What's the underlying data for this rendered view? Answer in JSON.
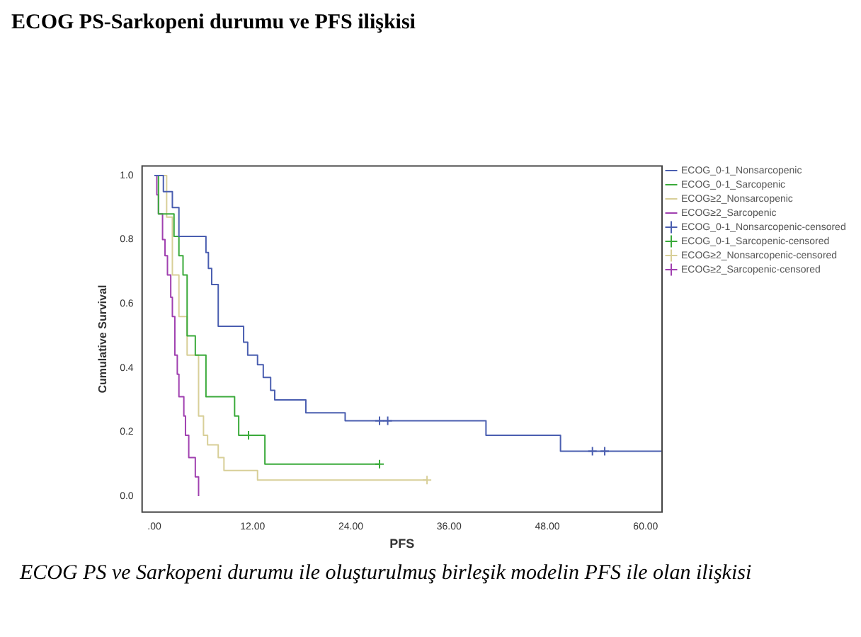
{
  "chart_data": {
    "type": "step",
    "title": "ECOG PS-Sarkopeni durumu ve PFS ilişkisi",
    "xlabel": "PFS",
    "ylabel": "Cumulative Survival",
    "annotations": [
      "ECOG PS ve Sarkopeni durumu ile oluşturulmuş birleşik modelin PFS ile olan ilişkisi"
    ],
    "xlim": [
      -1.5,
      62
    ],
    "ylim": [
      -0.05,
      1.03
    ],
    "xticks": [
      {
        "value": 0,
        "label": ".00"
      },
      {
        "value": 12,
        "label": "12.00"
      },
      {
        "value": 24,
        "label": "24.00"
      },
      {
        "value": 36,
        "label": "36.00"
      },
      {
        "value": 48,
        "label": "48.00"
      },
      {
        "value": 60,
        "label": "60.00"
      }
    ],
    "yticks": [
      {
        "value": 0,
        "label": "0.0"
      },
      {
        "value": 0.2,
        "label": "0.2"
      },
      {
        "value": 0.4,
        "label": "0.4"
      },
      {
        "value": 0.6,
        "label": "0.6"
      },
      {
        "value": 0.8,
        "label": "0.8"
      },
      {
        "value": 1,
        "label": "1.0"
      }
    ],
    "grid": false,
    "legend": "right",
    "series": [
      {
        "name": "ECOG_0-1_Nonsarcopenic",
        "marker": "none",
        "color": "#4a5eb0",
        "x": [
          0,
          1.1,
          2.2,
          3,
          6.3,
          6.6,
          7,
          7.8,
          10.9,
          11.4,
          12.6,
          13.3,
          14.2,
          14.7,
          18.5,
          23.3,
          40.5,
          49.6,
          62
        ],
        "values": [
          1,
          0.95,
          0.9,
          0.81,
          0.76,
          0.71,
          0.66,
          0.53,
          0.48,
          0.44,
          0.41,
          0.37,
          0.33,
          0.3,
          0.26,
          0.235,
          0.19,
          0.14,
          0.14
        ]
      },
      {
        "name": "ECOG_0-1_Sarcopenic",
        "marker": "none",
        "color": "#3aaa3a",
        "x": [
          0,
          0.5,
          2.4,
          3,
          3.5,
          4,
          5,
          6.3,
          9.8,
          10.3,
          13.5,
          27.5
        ],
        "values": [
          1,
          0.88,
          0.81,
          0.75,
          0.69,
          0.5,
          0.44,
          0.31,
          0.25,
          0.19,
          0.1,
          0.1
        ]
      },
      {
        "name": "ECOG≥2_Nonsarcopenic",
        "marker": "none",
        "color": "#d8cf98",
        "x": [
          0,
          1.5,
          2.2,
          3,
          4,
          5.4,
          6,
          6.5,
          7.8,
          8.5,
          12.6,
          33.3
        ],
        "values": [
          1,
          0.87,
          0.69,
          0.56,
          0.44,
          0.25,
          0.19,
          0.16,
          0.12,
          0.08,
          0.05,
          0.05
        ]
      },
      {
        "name": "ECOG≥2_Sarcopenic",
        "marker": "none",
        "color": "#a040b0",
        "x": [
          0,
          0.3,
          0.5,
          1,
          1.3,
          1.6,
          2,
          2.2,
          2.5,
          2.8,
          3,
          3.6,
          3.8,
          4.2,
          5,
          5.4
        ],
        "values": [
          1,
          0.94,
          0.88,
          0.8,
          0.75,
          0.69,
          0.62,
          0.56,
          0.44,
          0.38,
          0.31,
          0.25,
          0.19,
          0.12,
          0.06,
          0
        ]
      },
      {
        "name": "ECOG_0-1_Nonsarcopenic-censored",
        "type": "scatter",
        "marker": "cross",
        "color": "#4a5eb0",
        "x": [
          27.5,
          28.5,
          53.5,
          55
        ],
        "values": [
          0.235,
          0.235,
          0.14,
          0.14
        ]
      },
      {
        "name": "ECOG_0-1_Sarcopenic-censored",
        "type": "scatter",
        "marker": "cross",
        "color": "#3aaa3a",
        "x": [
          11.5,
          27.5
        ],
        "values": [
          0.19,
          0.1
        ]
      },
      {
        "name": "ECOG≥2_Nonsarcopenic-censored",
        "type": "scatter",
        "marker": "cross",
        "color": "#d8cf98",
        "x": [
          33.3
        ],
        "values": [
          0.05
        ]
      },
      {
        "name": "ECOG≥2_Sarcopenic-censored",
        "type": "scatter",
        "marker": "cross",
        "color": "#a040b0"
      }
    ]
  }
}
